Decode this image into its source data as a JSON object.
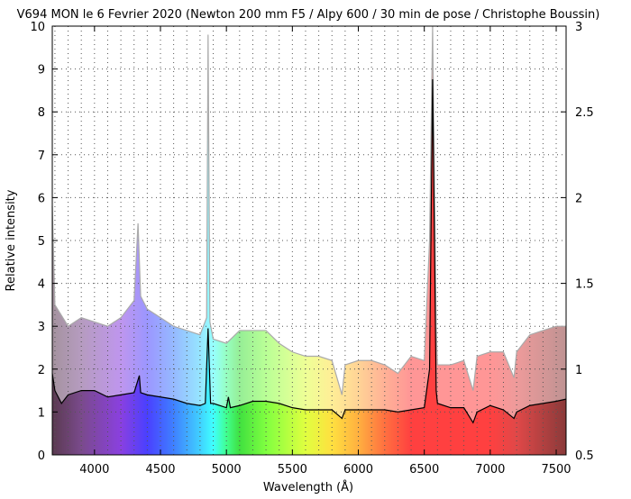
{
  "chart_data": {
    "type": "line",
    "title": "V694 MON le 6 Fevrier 2020 (Newton 200 mm F5 / Alpy 600 / 30 min de pose / Christophe Boussin)",
    "xlabel": "Wavelength (Å)",
    "ylabel": "Relative intensity",
    "xlim": [
      3680,
      7575
    ],
    "ylim": [
      0,
      10
    ],
    "y2lim": [
      0.5,
      3
    ],
    "xticks": [
      4000,
      4500,
      5000,
      5500,
      6000,
      6500,
      7000,
      7500
    ],
    "yticks": [
      0,
      1,
      2,
      3,
      4,
      5,
      6,
      7,
      8,
      9,
      10
    ],
    "y2ticks": [
      0.5,
      1,
      1.5,
      2,
      2.5,
      3
    ],
    "grid": true,
    "background": "visible spectrum color gradient",
    "series": [
      {
        "axis": "y2",
        "color": "#aaaaaa",
        "x": [
          3680,
          3700,
          3800,
          3900,
          4000,
          4100,
          4200,
          4300,
          4330,
          4350,
          4400,
          4500,
          4600,
          4700,
          4800,
          4850,
          4861,
          4875,
          4900,
          5000,
          5100,
          5200,
          5300,
          5400,
          5500,
          5600,
          5700,
          5800,
          5876,
          5900,
          6000,
          6100,
          6200,
          6300,
          6400,
          6500,
          6540,
          6563,
          6590,
          6600,
          6700,
          6800,
          6870,
          6900,
          7000,
          7100,
          7180,
          7200,
          7300,
          7400,
          7500,
          7575
        ],
        "y": [
          1.95,
          1.375,
          1.25,
          1.3,
          1.275,
          1.25,
          1.3,
          1.4,
          1.85,
          1.425,
          1.35,
          1.3,
          1.25,
          1.225,
          1.2,
          1.3,
          2.95,
          1.275,
          1.175,
          1.15,
          1.225,
          1.225,
          1.225,
          1.15,
          1.1,
          1.075,
          1.075,
          1.05,
          0.85,
          1.025,
          1.05,
          1.05,
          1.025,
          0.975,
          1.075,
          1.05,
          1.75,
          3.0,
          1.25,
          1.025,
          1.025,
          1.05,
          0.875,
          1.075,
          1.1,
          1.1,
          0.95,
          1.1,
          1.2,
          1.225,
          1.25,
          1.25
        ]
      },
      {
        "axis": "y",
        "color": "#000000",
        "x": [
          3680,
          3700,
          3750,
          3800,
          3900,
          3950,
          4000,
          4100,
          4200,
          4300,
          4340,
          4350,
          4400,
          4500,
          4600,
          4700,
          4800,
          4840,
          4861,
          4880,
          4900,
          5000,
          5015,
          5030,
          5100,
          5200,
          5300,
          5400,
          5500,
          5600,
          5700,
          5800,
          5876,
          5900,
          6000,
          6100,
          6200,
          6300,
          6400,
          6500,
          6540,
          6563,
          6590,
          6600,
          6700,
          6800,
          6870,
          6900,
          7000,
          7100,
          7180,
          7200,
          7300,
          7400,
          7500,
          7575
        ],
        "y": [
          1.9,
          1.5,
          1.2,
          1.4,
          1.5,
          1.5,
          1.5,
          1.35,
          1.4,
          1.45,
          1.85,
          1.45,
          1.4,
          1.35,
          1.3,
          1.2,
          1.15,
          1.2,
          2.95,
          1.2,
          1.2,
          1.1,
          1.35,
          1.1,
          1.15,
          1.25,
          1.25,
          1.2,
          1.1,
          1.05,
          1.05,
          1.05,
          0.85,
          1.05,
          1.05,
          1.05,
          1.05,
          1.0,
          1.05,
          1.1,
          2.0,
          8.76,
          1.5,
          1.2,
          1.1,
          1.1,
          0.75,
          1.0,
          1.15,
          1.05,
          0.85,
          1.0,
          1.15,
          1.2,
          1.25,
          1.3
        ]
      }
    ]
  }
}
